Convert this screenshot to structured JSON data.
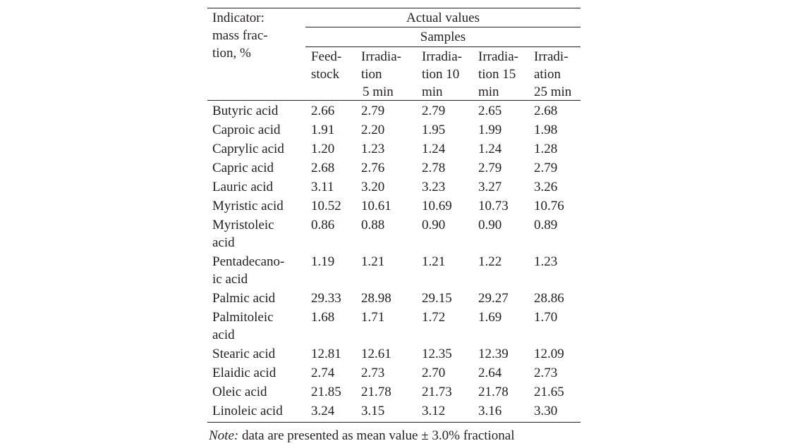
{
  "table": {
    "header": {
      "indicator": [
        "Indicator:",
        "mass frac-",
        "tion, %"
      ],
      "group": "Actual values",
      "subgroup": "Samples",
      "columns": [
        [
          "Feed-",
          "stock"
        ],
        [
          "Irradia-",
          "tion",
          "5 min"
        ],
        [
          "Irradia-",
          "tion 10",
          "min"
        ],
        [
          "Irradia-",
          "tion 15",
          "min"
        ],
        [
          "Irradi-",
          "ation",
          "25 min"
        ]
      ]
    },
    "rows": [
      {
        "label": [
          "Butyric acid"
        ],
        "values": [
          "2.66",
          "2.79",
          "2.79",
          "2.65",
          "2.68"
        ]
      },
      {
        "label": [
          "Caproic acid"
        ],
        "values": [
          "1.91",
          "2.20",
          "1.95",
          "1.99",
          "1.98"
        ]
      },
      {
        "label": [
          "Caprylic acid"
        ],
        "values": [
          "1.20",
          "1.23",
          "1.24",
          "1.24",
          "1.28"
        ]
      },
      {
        "label": [
          "Capric acid"
        ],
        "values": [
          "2.68",
          "2.76",
          "2.78",
          "2.79",
          "2.79"
        ]
      },
      {
        "label": [
          "Lauric acid"
        ],
        "values": [
          "3.11",
          "3.20",
          "3.23",
          "3.27",
          "3.26"
        ]
      },
      {
        "label": [
          "Myristic acid"
        ],
        "values": [
          "10.52",
          "10.61",
          "10.69",
          "10.73",
          "10.76"
        ]
      },
      {
        "label": [
          "Myristoleic",
          "acid"
        ],
        "values": [
          "0.86",
          "0.88",
          "0.90",
          "0.90",
          "0.89"
        ]
      },
      {
        "label": [
          "Pentadecano-",
          "ic acid"
        ],
        "values": [
          "1.19",
          "1.21",
          "1.21",
          "1.22",
          "1.23"
        ]
      },
      {
        "label": [
          "Palmic acid"
        ],
        "values": [
          "29.33",
          "28.98",
          "29.15",
          "29.27",
          "28.86"
        ]
      },
      {
        "label": [
          "Palmitoleic",
          "acid"
        ],
        "values": [
          "1.68",
          "1.71",
          "1.72",
          "1.69",
          "1.70"
        ]
      },
      {
        "label": [
          "Stearic acid"
        ],
        "values": [
          "12.81",
          "12.61",
          "12.35",
          "12.39",
          "12.09"
        ]
      },
      {
        "label": [
          "Elaidic acid"
        ],
        "values": [
          "2.74",
          "2.73",
          "2.70",
          "2.64",
          "2.73"
        ]
      },
      {
        "label": [
          "Oleic acid"
        ],
        "values": [
          "21.85",
          "21.78",
          "21.73",
          "21.78",
          "21.65"
        ]
      },
      {
        "label": [
          "Linoleic acid"
        ],
        "values": [
          "3.24",
          "3.15",
          "3.12",
          "3.16",
          "3.30"
        ]
      }
    ]
  },
  "note": {
    "prefix": "Note:",
    "text": " data are presented as mean value ± 3.0% fractional"
  }
}
